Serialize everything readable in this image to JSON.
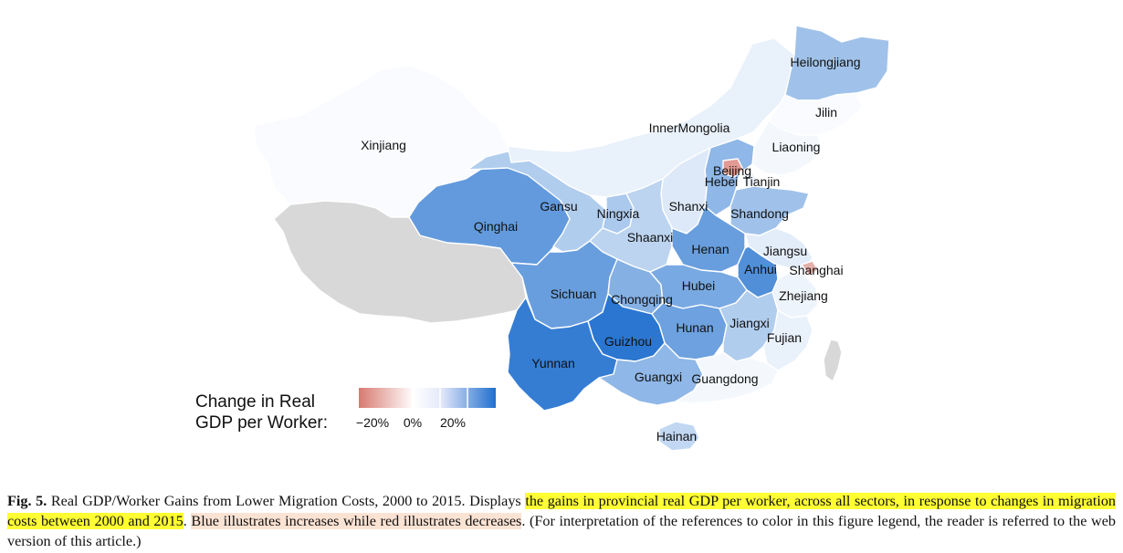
{
  "figure": {
    "legend": {
      "title_lines": [
        "Change in Real",
        "GDP per Worker:"
      ],
      "ticks": [
        "−20%",
        "0%",
        "20%"
      ],
      "colors": [
        "#d77a70",
        "#ffffff",
        "#1f6fce"
      ]
    },
    "colors": {
      "no_data": "#d8d8d8",
      "taiwan": "#d8d8d8"
    },
    "provinces": [
      {
        "name": "Xinjiang",
        "label": "Xinjiang",
        "change_pct": 1
      },
      {
        "name": "Tibet",
        "label": "",
        "change_pct": null
      },
      {
        "name": "Qinghai",
        "label": "Qinghai",
        "change_pct": 28
      },
      {
        "name": "Gansu",
        "label": "Gansu",
        "change_pct": 14
      },
      {
        "name": "InnerMongolia",
        "label": "InnerMongolia",
        "change_pct": 4
      },
      {
        "name": "Heilongjiang",
        "label": "Heilongjiang",
        "change_pct": 17
      },
      {
        "name": "Jilin",
        "label": "Jilin",
        "change_pct": 1
      },
      {
        "name": "Liaoning",
        "label": "Liaoning",
        "change_pct": 2
      },
      {
        "name": "Beijing",
        "label": "Beijing",
        "change_pct": -15
      },
      {
        "name": "Tianjin",
        "label": "Tianjin",
        "change_pct": 3
      },
      {
        "name": "Hebei",
        "label": "Hebei",
        "change_pct": 20
      },
      {
        "name": "Shanxi",
        "label": "Shanxi",
        "change_pct": 6
      },
      {
        "name": "Ningxia",
        "label": "Ningxia",
        "change_pct": 15
      },
      {
        "name": "Shaanxi",
        "label": "Shaanxi",
        "change_pct": 12
      },
      {
        "name": "Shandong",
        "label": "Shandong",
        "change_pct": 17
      },
      {
        "name": "Henan",
        "label": "Henan",
        "change_pct": 27
      },
      {
        "name": "Jiangsu",
        "label": "Jiangsu",
        "change_pct": 5
      },
      {
        "name": "Anhui",
        "label": "Anhui",
        "change_pct": 31
      },
      {
        "name": "Shanghai",
        "label": "Shanghai",
        "change_pct": -12
      },
      {
        "name": "Zhejiang",
        "label": "Zhejiang",
        "change_pct": 3
      },
      {
        "name": "Sichuan",
        "label": "Sichuan",
        "change_pct": 27
      },
      {
        "name": "Chongqing",
        "label": "Chongqing",
        "change_pct": 22
      },
      {
        "name": "Hubei",
        "label": "Hubei",
        "change_pct": 24
      },
      {
        "name": "Hunan",
        "label": "Hunan",
        "change_pct": 26
      },
      {
        "name": "Jiangxi",
        "label": "Jiangxi",
        "change_pct": 14
      },
      {
        "name": "Fujian",
        "label": "Fujian",
        "change_pct": 4
      },
      {
        "name": "Guizhou",
        "label": "Guizhou",
        "change_pct": 38
      },
      {
        "name": "Yunnan",
        "label": "Yunnan",
        "change_pct": 36
      },
      {
        "name": "Guangxi",
        "label": "Guangxi",
        "change_pct": 20
      },
      {
        "name": "Guangdong",
        "label": "Guangdong",
        "change_pct": 2
      },
      {
        "name": "Hainan",
        "label": "Hainan",
        "change_pct": 11
      }
    ]
  },
  "caption": {
    "label": "Fig. 5.",
    "part1": " Real GDP/Worker Gains from Lower Migration Costs, 2000 to 2015. Displays ",
    "highlight1": "the gains in provincial real GDP per worker, across all sectors, in response to changes in migration costs between 2000 and 2015",
    "part2": ". ",
    "highlight2": "Blue illustrates increases while red illustrates decreases",
    "part3": ". (For interpretation of the references to color in this figure legend, the reader is referred to the web version of this article.)"
  }
}
